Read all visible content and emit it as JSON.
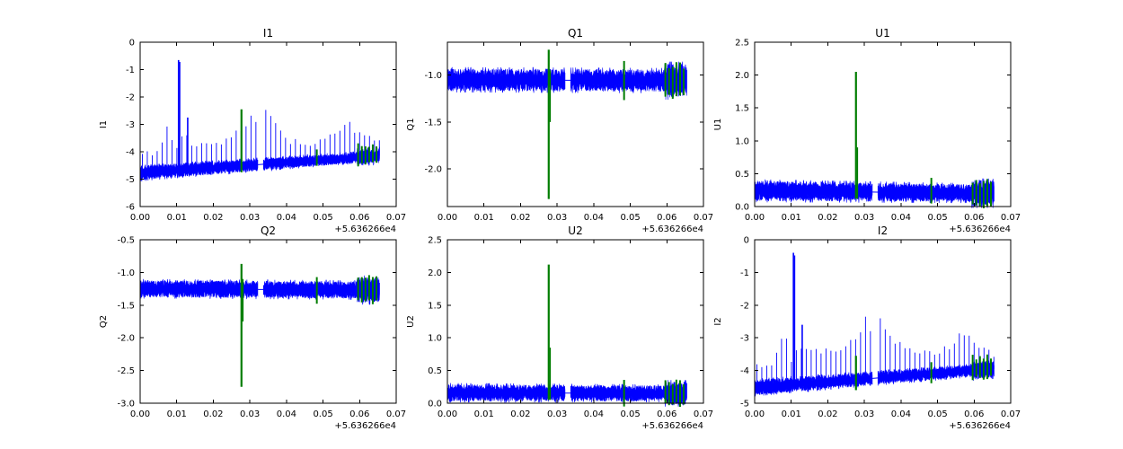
{
  "figure": {
    "background_color": "#ffffff",
    "frame_color": "#000000",
    "series_color": "#0000ff",
    "event_color": "#007d00",
    "text_color": "#000000"
  },
  "chart_data": {
    "type": "line",
    "layout": "2 rows x 3 columns of subplots",
    "subplot_titles": [
      "I1",
      "Q1",
      "U1",
      "Q2",
      "U2",
      "I2"
    ],
    "x_axis": {
      "lim": [
        0.0,
        0.07
      ],
      "tick_values": [
        0.0,
        0.01,
        0.02,
        0.03,
        0.04,
        0.05,
        0.06,
        0.07
      ],
      "tick_labels": [
        "0.00",
        "0.01",
        "0.02",
        "0.03",
        "0.04",
        "0.05",
        "0.06",
        "0.07"
      ],
      "offset_label": "+5.636266e4",
      "data_range": [
        0.0,
        0.0655
      ],
      "gap": [
        0.0322,
        0.0337
      ]
    },
    "panels": [
      {
        "title": "I1",
        "ylabel": "I1",
        "ylim": [
          -6,
          0
        ],
        "ytick_values": [
          0,
          -1,
          -2,
          -3,
          -4,
          -5,
          -6
        ],
        "ytick_labels": [
          "0",
          "-1",
          "-2",
          "-3",
          "-4",
          "-5",
          "-6"
        ],
        "band": {
          "centers": [
            -4.78,
            -4.15
          ],
          "halfwidths": [
            0.22,
            0.16
          ],
          "end_flare": 1.5
        },
        "spikes": {
          "period": 0.00135,
          "start": 0.0006,
          "jitter": 0.12,
          "envelope": [
            [
              0.0006,
              -4.05
            ],
            [
              0.004,
              -4.15
            ],
            [
              0.0075,
              -3.15
            ],
            [
              0.0085,
              -3.6
            ],
            [
              0.0095,
              -3.9
            ],
            [
              0.0125,
              -3.3
            ],
            [
              0.0145,
              -3.75
            ],
            [
              0.019,
              -3.65
            ],
            [
              0.023,
              -3.7
            ],
            [
              0.026,
              -3.35
            ],
            [
              0.0285,
              -3.05
            ],
            [
              0.0305,
              -2.62
            ],
            [
              0.0315,
              -2.95
            ],
            [
              0.034,
              -2.52
            ],
            [
              0.036,
              -2.8
            ],
            [
              0.038,
              -3.3
            ],
            [
              0.041,
              -3.6
            ],
            [
              0.045,
              -3.75
            ],
            [
              0.048,
              -3.6
            ],
            [
              0.051,
              -3.45
            ],
            [
              0.054,
              -3.35
            ],
            [
              0.057,
              -2.97
            ],
            [
              0.0585,
              -3.2
            ],
            [
              0.0605,
              -3.4
            ],
            [
              0.063,
              -3.5
            ],
            [
              0.0655,
              -3.6
            ]
          ]
        },
        "extra_spikes": [
          [
            0.0105,
            -0.65
          ],
          [
            0.0108,
            -0.72
          ],
          [
            0.013,
            -2.75
          ]
        ],
        "green_spike": {
          "x": 0.0277,
          "y_from": -4.75,
          "y_to": -2.45
        },
        "green_marks": {
          "xs": [
            0.0483,
            0.0596,
            0.0606,
            0.0616,
            0.0626,
            0.0636,
            0.0646
          ],
          "span_up": 0.45,
          "span_down": 0.28
        }
      },
      {
        "title": "Q1",
        "ylabel": "Q1",
        "ylim": [
          -2.4,
          -0.65
        ],
        "ytick_values": [
          -1.0,
          -1.5,
          -2.0
        ],
        "ytick_labels": [
          "-1.0",
          "-1.5",
          "-2.0"
        ],
        "band": {
          "centers": [
            -1.05,
            -1.06
          ],
          "halfwidths": [
            0.1,
            0.1
          ],
          "end_flare": 1.5
        },
        "green_spike": {
          "x": 0.0277,
          "y_from": -2.32,
          "y_to": -0.73
        },
        "green_secondary": {
          "x": 0.0281,
          "y_from": -1.5,
          "y_to": -0.95
        },
        "green_marks": {
          "xs": [
            0.0483,
            0.0596,
            0.0606,
            0.0616,
            0.0626,
            0.0636,
            0.0646
          ],
          "span_up": 0.18,
          "span_down": 0.18
        }
      },
      {
        "title": "U1",
        "ylabel": "U1",
        "ylim": [
          0.0,
          2.5
        ],
        "ytick_values": [
          0.0,
          0.5,
          1.0,
          1.5,
          2.0,
          2.5
        ],
        "ytick_labels": [
          "0.0",
          "0.5",
          "1.0",
          "1.5",
          "2.0",
          "2.5"
        ],
        "band": {
          "centers": [
            0.24,
            0.2
          ],
          "halfwidths": [
            0.13,
            0.11
          ],
          "end_flare": 1.5
        },
        "green_spike": {
          "x": 0.0277,
          "y_from": 0.12,
          "y_to": 2.05
        },
        "green_secondary": {
          "x": 0.0281,
          "y_from": 0.12,
          "y_to": 0.9
        },
        "green_marks": {
          "xs": [
            0.0483,
            0.0596,
            0.0606,
            0.0616,
            0.0626,
            0.0636,
            0.0646
          ],
          "span_up": 0.2,
          "span_down": 0.2
        }
      },
      {
        "title": "Q2",
        "ylabel": "Q2",
        "ylim": [
          -3.0,
          -0.5
        ],
        "ytick_values": [
          -0.5,
          -1.0,
          -1.5,
          -2.0,
          -2.5,
          -3.0
        ],
        "ytick_labels": [
          "-0.5",
          "-1.0",
          "-1.5",
          "-2.0",
          "-2.5",
          "-3.0"
        ],
        "band": {
          "centers": [
            -1.25,
            -1.27
          ],
          "halfwidths": [
            0.11,
            0.11
          ],
          "end_flare": 1.5
        },
        "green_spike": {
          "x": 0.0277,
          "y_from": -2.75,
          "y_to": -0.87
        },
        "green_secondary": {
          "x": 0.0281,
          "y_from": -1.75,
          "y_to": -1.1
        },
        "green_marks": {
          "xs": [
            0.0483,
            0.0596,
            0.0606,
            0.0616,
            0.0626,
            0.0636,
            0.0646
          ],
          "span_up": 0.2,
          "span_down": 0.2
        }
      },
      {
        "title": "U2",
        "ylabel": "U2",
        "ylim": [
          0.0,
          2.5
        ],
        "ytick_values": [
          0.0,
          0.5,
          1.0,
          1.5,
          2.0,
          2.5
        ],
        "ytick_labels": [
          "0.0",
          "0.5",
          "1.0",
          "1.5",
          "2.0",
          "2.5"
        ],
        "band": {
          "centers": [
            0.16,
            0.15
          ],
          "halfwidths": [
            0.11,
            0.1
          ],
          "end_flare": 1.5
        },
        "green_spike": {
          "x": 0.0277,
          "y_from": 0.05,
          "y_to": 2.12
        },
        "green_secondary": {
          "x": 0.0281,
          "y_from": 0.05,
          "y_to": 0.85
        },
        "green_marks": {
          "xs": [
            0.0483,
            0.0596,
            0.0606,
            0.0616,
            0.0626,
            0.0636,
            0.0646
          ],
          "span_up": 0.18,
          "span_down": 0.18
        }
      },
      {
        "title": "I2",
        "ylabel": "I2",
        "ylim": [
          -5,
          0
        ],
        "ytick_values": [
          0,
          -1,
          -2,
          -3,
          -4,
          -5
        ],
        "ytick_labels": [
          "0",
          "-1",
          "-2",
          "-3",
          "-4",
          "-5"
        ],
        "band": {
          "centers": [
            -4.52,
            -3.95
          ],
          "halfwidths": [
            0.2,
            0.15
          ],
          "end_flare": 1.5
        },
        "spikes": {
          "period": 0.00135,
          "start": 0.0006,
          "jitter": 0.12,
          "envelope": [
            [
              0.0006,
              -3.8
            ],
            [
              0.004,
              -4.0
            ],
            [
              0.0075,
              -3.0
            ],
            [
              0.0085,
              -2.72
            ],
            [
              0.0095,
              -3.8
            ],
            [
              0.0125,
              -3.2
            ],
            [
              0.0145,
              -3.5
            ],
            [
              0.019,
              -3.35
            ],
            [
              0.023,
              -3.4
            ],
            [
              0.026,
              -3.2
            ],
            [
              0.0285,
              -2.9
            ],
            [
              0.0305,
              -2.38
            ],
            [
              0.0315,
              -2.75
            ],
            [
              0.034,
              -2.37
            ],
            [
              0.036,
              -2.7
            ],
            [
              0.038,
              -3.1
            ],
            [
              0.041,
              -3.35
            ],
            [
              0.045,
              -3.5
            ],
            [
              0.048,
              -3.45
            ],
            [
              0.051,
              -3.35
            ],
            [
              0.054,
              -3.2
            ],
            [
              0.057,
              -2.82
            ],
            [
              0.0585,
              -3.0
            ],
            [
              0.0605,
              -3.2
            ],
            [
              0.063,
              -3.35
            ],
            [
              0.0655,
              -3.5
            ]
          ]
        },
        "extra_spikes": [
          [
            0.0106,
            -0.4
          ],
          [
            0.0109,
            -0.48
          ],
          [
            0.013,
            -2.6
          ]
        ],
        "green_spike": {
          "x": 0.0277,
          "y_from": -4.6,
          "y_to": -3.55
        },
        "green_marks": {
          "xs": [
            0.0483,
            0.0596,
            0.0606,
            0.0616,
            0.0626,
            0.0636,
            0.0646
          ],
          "span_up": 0.42,
          "span_down": 0.26
        }
      }
    ]
  }
}
